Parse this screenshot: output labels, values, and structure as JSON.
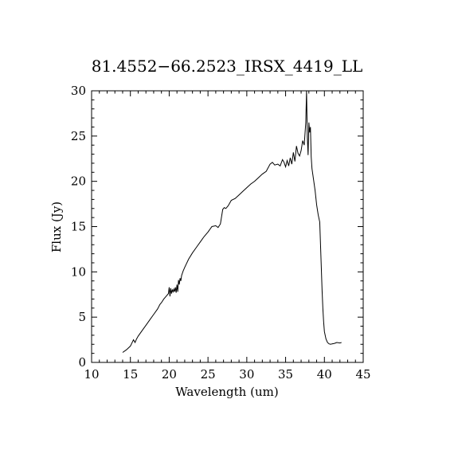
{
  "chart_data": {
    "type": "line",
    "title": "81.4552−66.2523_IRSX_4419_LL",
    "xlabel": "Wavelength (um)",
    "ylabel": "Flux (Jy)",
    "xlim": [
      10,
      45
    ],
    "ylim": [
      0,
      30
    ],
    "xticks": [
      "10",
      "15",
      "20",
      "25",
      "30",
      "35",
      "40",
      "45"
    ],
    "yticks": [
      "0",
      "5",
      "10",
      "15",
      "20",
      "25",
      "30"
    ],
    "grid": false,
    "series": [
      {
        "x": [
          14.0,
          14.5,
          15.0,
          15.4,
          15.6,
          15.8,
          16.0,
          16.5,
          17.0,
          17.5,
          18.0,
          18.5,
          18.8,
          19.0,
          19.3,
          19.6,
          19.9,
          20.0,
          20.1,
          20.2,
          20.3,
          20.4,
          20.5,
          20.6,
          20.7,
          20.8,
          20.9,
          21.0,
          21.1,
          21.2,
          21.3,
          21.4,
          21.5,
          21.6,
          21.8,
          22.0,
          22.5,
          23.0,
          23.5,
          24.0,
          24.5,
          25.0,
          25.5,
          26.0,
          26.3,
          26.6,
          26.9,
          27.1,
          27.3,
          27.6,
          28.0,
          28.5,
          29.0,
          29.5,
          30.0,
          30.5,
          31.0,
          31.5,
          32.0,
          32.5,
          33.0,
          33.3,
          33.6,
          34.0,
          34.3,
          34.6,
          34.8,
          35.0,
          35.2,
          35.4,
          35.6,
          35.8,
          36.0,
          36.2,
          36.4,
          36.6,
          36.8,
          37.0,
          37.2,
          37.4,
          37.6,
          37.7,
          37.8,
          37.9,
          38.0,
          38.1,
          38.2,
          38.3,
          38.4,
          38.5,
          38.6,
          38.8,
          39.0,
          39.2,
          39.4,
          39.5,
          39.6,
          39.7,
          39.8,
          39.9,
          40.0,
          40.2,
          40.4,
          40.6,
          40.8,
          41.0,
          41.3,
          41.6,
          42.0,
          42.2
        ],
        "y": [
          1.1,
          1.4,
          1.8,
          2.5,
          2.2,
          2.6,
          2.9,
          3.5,
          4.1,
          4.7,
          5.3,
          5.9,
          6.4,
          6.6,
          7.0,
          7.3,
          7.6,
          8.3,
          7.3,
          8.2,
          7.6,
          8.0,
          7.8,
          8.1,
          7.8,
          8.3,
          7.7,
          8.6,
          7.8,
          9.1,
          8.6,
          9.3,
          9.0,
          9.6,
          10.1,
          10.5,
          11.4,
          12.1,
          12.7,
          13.3,
          13.9,
          14.4,
          15.0,
          15.1,
          14.9,
          15.3,
          16.9,
          17.1,
          17.0,
          17.3,
          17.9,
          18.1,
          18.5,
          18.9,
          19.3,
          19.7,
          20.0,
          20.4,
          20.8,
          21.1,
          21.9,
          22.1,
          21.8,
          21.9,
          21.7,
          22.4,
          22.1,
          21.6,
          22.3,
          21.7,
          22.6,
          21.9,
          23.2,
          22.2,
          23.9,
          23.1,
          22.8,
          23.4,
          24.5,
          24.0,
          26.5,
          30.0,
          24.9,
          22.9,
          26.5,
          25.4,
          26.0,
          22.7,
          21.4,
          20.8,
          20.2,
          19.0,
          17.4,
          16.3,
          15.5,
          13.0,
          10.5,
          8.0,
          6.0,
          4.5,
          3.4,
          2.6,
          2.2,
          2.05,
          2.0,
          2.05,
          2.1,
          2.2,
          2.15,
          2.2
        ]
      }
    ]
  }
}
